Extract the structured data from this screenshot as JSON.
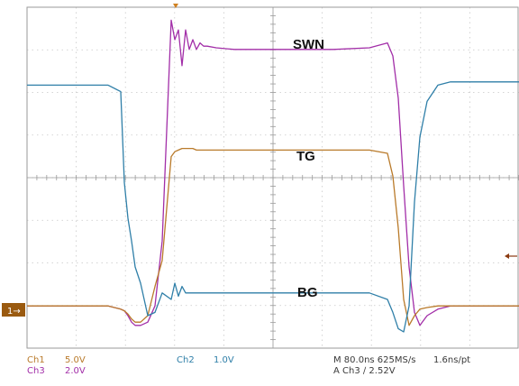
{
  "chart_data": {
    "type": "line",
    "grid": true,
    "labels": {
      "swn": "SWN",
      "tg": "TG",
      "bg": "BG"
    },
    "ground_marker": "1→",
    "x": [
      0,
      90,
      104,
      108,
      112,
      116,
      120,
      126,
      134,
      142,
      150,
      160,
      164,
      168,
      172,
      176,
      180,
      184,
      188,
      192,
      196,
      200,
      210,
      230,
      260,
      300,
      340,
      380,
      400,
      406,
      412,
      418,
      424,
      430,
      436,
      444,
      456,
      470,
      490,
      520,
      546
    ],
    "series": [
      {
        "name": "SWN",
        "color": "#a22ea8",
        "values": [
          -1.2,
          -1.2,
          -1.3,
          -1.35,
          -1.5,
          -1.7,
          -1.8,
          -1.8,
          -1.7,
          -1.2,
          0.8,
          7.6,
          7.0,
          7.3,
          6.2,
          7.3,
          6.7,
          7.0,
          6.7,
          6.9,
          6.8,
          6.8,
          6.75,
          6.7,
          6.7,
          6.7,
          6.7,
          6.75,
          6.9,
          6.5,
          5.2,
          2.5,
          0.0,
          -1.4,
          -1.8,
          -1.5,
          -1.3,
          -1.2,
          -1.2,
          -1.2,
          -1.2
        ]
      },
      {
        "name": "TG",
        "color": "#b97a2a",
        "values": [
          -1.2,
          -1.2,
          -1.3,
          -1.35,
          -1.45,
          -1.6,
          -1.7,
          -1.7,
          -1.5,
          -0.6,
          0.2,
          3.4,
          3.55,
          3.6,
          3.65,
          3.65,
          3.65,
          3.65,
          3.6,
          3.6,
          3.6,
          3.6,
          3.6,
          3.6,
          3.6,
          3.6,
          3.6,
          3.6,
          3.5,
          2.8,
          1.2,
          -1.0,
          -1.8,
          -1.5,
          -1.3,
          -1.25,
          -1.2,
          -1.2,
          -1.2,
          -1.2,
          -1.2
        ]
      },
      {
        "name": "BG",
        "color": "#2f7fa8",
        "values": [
          5.6,
          5.6,
          5.4,
          2.6,
          1.5,
          0.8,
          0.0,
          -0.5,
          -1.5,
          -1.4,
          -0.8,
          -1.0,
          -0.5,
          -0.9,
          -0.6,
          -0.8,
          -0.8,
          -0.8,
          -0.8,
          -0.8,
          -0.8,
          -0.8,
          -0.8,
          -0.8,
          -0.8,
          -0.8,
          -0.8,
          -0.8,
          -1.0,
          -1.4,
          -1.9,
          -2.0,
          -1.2,
          2.0,
          4.0,
          5.1,
          5.6,
          5.7,
          5.7,
          5.7,
          5.7
        ]
      }
    ],
    "xlim": [
      0,
      546
    ],
    "ylim": [
      -2.5,
      8.0
    ]
  },
  "status": {
    "ch1": "Ch1",
    "ch1_scale": "5.0V",
    "ch2": "Ch2",
    "ch2_scale": "1.0V",
    "ch3": "Ch3",
    "ch3_scale": "2.0V",
    "timebase": "M 80.0ns 625MS/s",
    "resolution": "1.6ns/pt",
    "trigger": "A  Ch3  ∕  2.52V"
  }
}
